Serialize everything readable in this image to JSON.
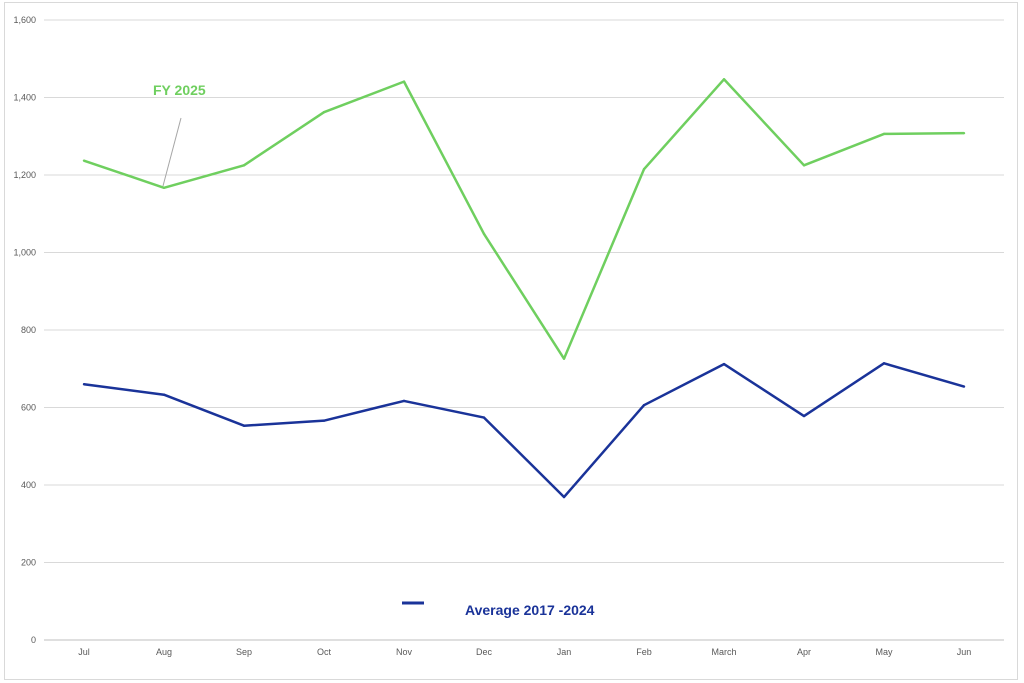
{
  "chart_data": {
    "type": "line",
    "categories": [
      "Jul",
      "Aug",
      "Sep",
      "Oct",
      "Nov",
      "Dec",
      "Jan",
      "Feb",
      "March",
      "Apr",
      "May",
      "Jun"
    ],
    "ylim": [
      0,
      1600
    ],
    "y_ticks": [
      "0",
      "200",
      "400",
      "600",
      "800",
      "1,000",
      "1,200",
      "1,400",
      "1,600"
    ],
    "grid": true,
    "series": [
      {
        "name": "FY 2025",
        "color": "#6fcf5f",
        "values": [
          1237,
          1167,
          1225,
          1362,
          1441,
          1048,
          726,
          1215,
          1447,
          1225,
          1306,
          1308
        ]
      },
      {
        "name": "Average 2017 -2024",
        "color": "#1a3399",
        "values": [
          660,
          633,
          553,
          566,
          617,
          574,
          369,
          606,
          712,
          578,
          714,
          654
        ]
      }
    ],
    "annotations": {
      "fy_label": "FY 2025",
      "avg_label": "Average 2017 -2024"
    }
  }
}
